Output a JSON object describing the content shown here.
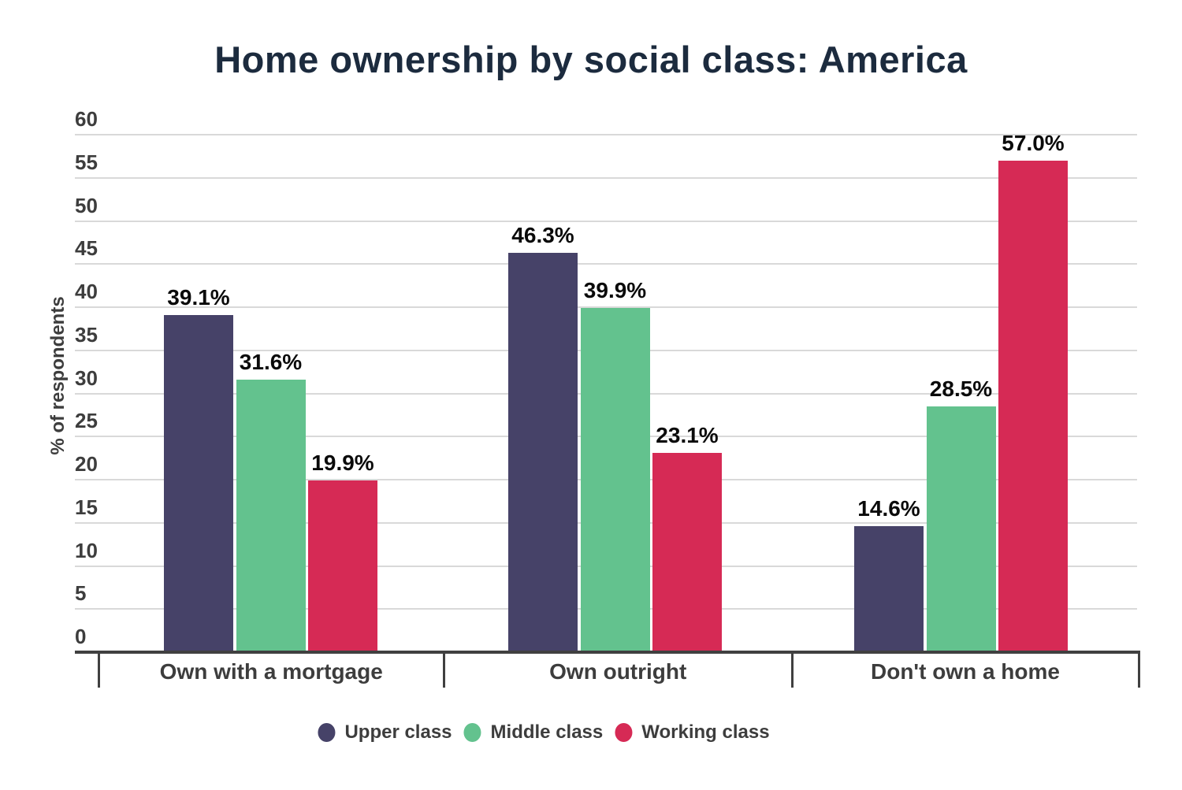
{
  "title": "Home ownership by social class: America",
  "chart_data": {
    "type": "bar",
    "title": "Home ownership by social class: America",
    "xlabel": "",
    "ylabel": "% of respondents",
    "categories": [
      "Own with a mortgage",
      "Own outright",
      "Don't own a home"
    ],
    "series": [
      {
        "name": "Upper class",
        "color": "#464268",
        "values": [
          39.1,
          46.3,
          14.6
        ],
        "labels": [
          "39.1%",
          "46.3%",
          "14.6%"
        ]
      },
      {
        "name": "Middle class",
        "color": "#63c28e",
        "values": [
          31.6,
          39.9,
          28.5
        ],
        "labels": [
          "31.6%",
          "39.9%",
          "28.5%"
        ]
      },
      {
        "name": "Working class",
        "color": "#d62a55",
        "values": [
          19.9,
          23.1,
          57.0
        ],
        "labels": [
          "19.9%",
          "23.1%",
          "57.0%"
        ]
      }
    ],
    "yticks": [
      0,
      5,
      10,
      15,
      20,
      25,
      30,
      35,
      40,
      45,
      50,
      55,
      60
    ],
    "ylim": [
      0,
      60
    ],
    "grid": true,
    "legend_position": "bottom"
  },
  "colors": {
    "background": "#ffffff",
    "title_text": "#1c2b3e",
    "axis_text": "#3d3d3d",
    "data_label_text": "#0a0a0a",
    "gridline": "#d9d9d9",
    "axis_line": "#404040"
  }
}
